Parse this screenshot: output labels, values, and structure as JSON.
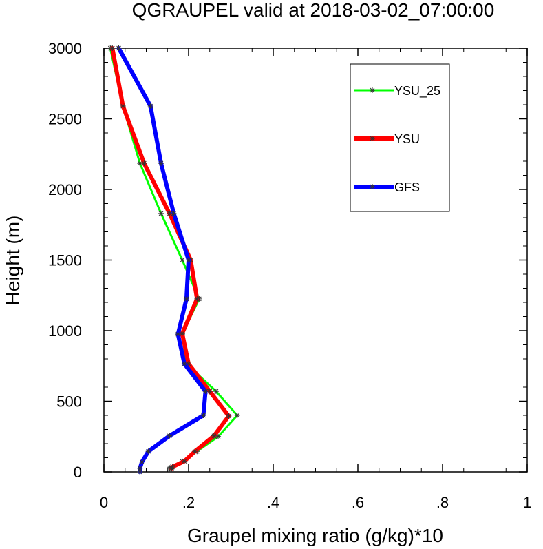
{
  "chart_data": {
    "type": "line",
    "title": "QGRAUPEL valid at 2018-03-02_07:00:00",
    "xlabel": "Graupel mixing ratio (g/kg)*10",
    "ylabel": "Height (m)",
    "xlim": [
      0,
      1
    ],
    "ylim": [
      0,
      3000
    ],
    "xticks": [
      0,
      0.2,
      0.4,
      0.6,
      0.8,
      1
    ],
    "xtick_labels": [
      "0",
      ".2",
      ".4",
      ".6",
      ".8",
      "1"
    ],
    "yticks": [
      0,
      500,
      1000,
      1500,
      2000,
      2500,
      3000
    ],
    "ytick_labels": [
      "0",
      "500",
      "1000",
      "1500",
      "2000",
      "2500",
      "3000"
    ],
    "grid": false,
    "legend_position": "top-right",
    "series": [
      {
        "name": "YSU_25",
        "color": "#00ff00",
        "points": [
          [
            0.155,
            20
          ],
          [
            0.158,
            35
          ],
          [
            0.185,
            75
          ],
          [
            0.22,
            145
          ],
          [
            0.27,
            250
          ],
          [
            0.315,
            400
          ],
          [
            0.265,
            570
          ],
          [
            0.195,
            765
          ],
          [
            0.185,
            975
          ],
          [
            0.225,
            1225
          ],
          [
            0.185,
            1500
          ],
          [
            0.135,
            1830
          ],
          [
            0.085,
            2185
          ],
          [
            0.045,
            2590
          ],
          [
            0.015,
            3000
          ]
        ]
      },
      {
        "name": "YSU",
        "color": "#ff0000",
        "points": [
          [
            0.16,
            20
          ],
          [
            0.162,
            35
          ],
          [
            0.19,
            75
          ],
          [
            0.215,
            145
          ],
          [
            0.26,
            255
          ],
          [
            0.295,
            395
          ],
          [
            0.25,
            570
          ],
          [
            0.2,
            765
          ],
          [
            0.185,
            980
          ],
          [
            0.22,
            1225
          ],
          [
            0.205,
            1500
          ],
          [
            0.155,
            1830
          ],
          [
            0.095,
            2185
          ],
          [
            0.045,
            2590
          ],
          [
            0.02,
            3000
          ]
        ]
      },
      {
        "name": "GFS",
        "color": "#0000ff",
        "points": [
          [
            0.085,
            0
          ],
          [
            0.085,
            25
          ],
          [
            0.09,
            70
          ],
          [
            0.105,
            145
          ],
          [
            0.155,
            255
          ],
          [
            0.235,
            400
          ],
          [
            0.24,
            570
          ],
          [
            0.19,
            765
          ],
          [
            0.175,
            975
          ],
          [
            0.195,
            1225
          ],
          [
            0.2,
            1500
          ],
          [
            0.165,
            1830
          ],
          [
            0.135,
            2185
          ],
          [
            0.11,
            2590
          ],
          [
            0.035,
            3000
          ]
        ]
      }
    ]
  }
}
